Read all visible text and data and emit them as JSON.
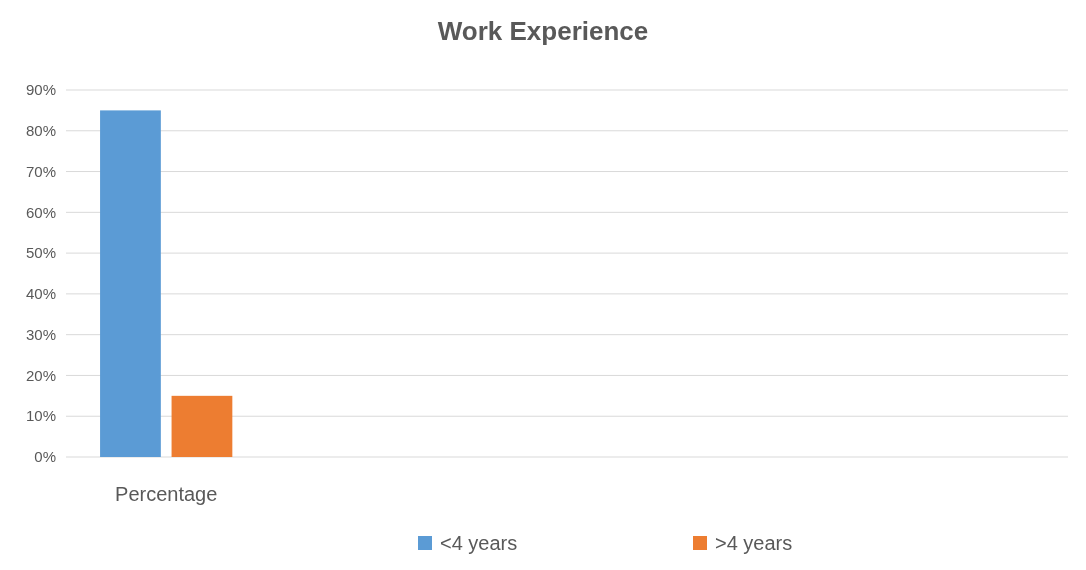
{
  "chart_data": {
    "type": "bar",
    "title": "Work Experience",
    "categories": [
      "Percentage",
      null,
      null,
      null,
      null
    ],
    "series": [
      {
        "name": "<4 years",
        "color": "#5b9bd5",
        "values": [
          85,
          null,
          null,
          null,
          null
        ]
      },
      {
        "name": ">4 years",
        "color": "#ed7d31",
        "values": [
          15,
          null,
          null,
          null,
          null
        ]
      }
    ],
    "ylim": [
      0,
      90
    ],
    "yticks": [
      {
        "value": 0,
        "label": "0%"
      },
      {
        "value": 10,
        "label": "10%"
      },
      {
        "value": 20,
        "label": "20%"
      },
      {
        "value": 30,
        "label": "30%"
      },
      {
        "value": 40,
        "label": "40%"
      },
      {
        "value": 50,
        "label": "50%"
      },
      {
        "value": 60,
        "label": "60%"
      },
      {
        "value": 70,
        "label": "70%"
      },
      {
        "value": 80,
        "label": "80%"
      },
      {
        "value": 90,
        "label": "90%"
      }
    ],
    "grid": "y",
    "legend": "bottom"
  }
}
